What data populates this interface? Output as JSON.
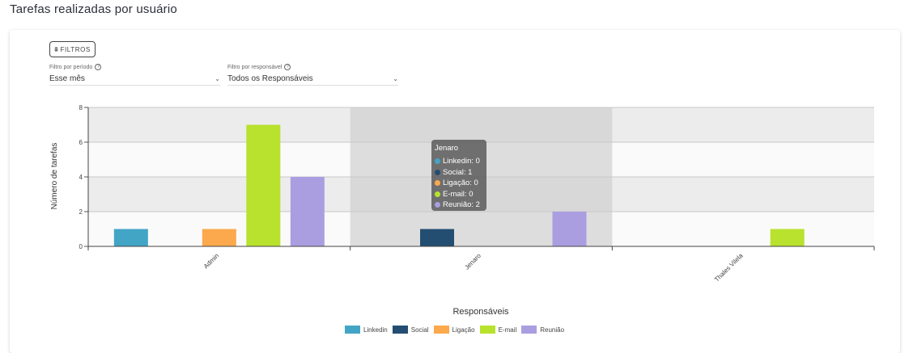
{
  "page": {
    "title": "Tarefas realizadas por usuário"
  },
  "filters": {
    "button_label": "FILTROS",
    "period": {
      "label": "Filtro por período",
      "value": "Esse mês"
    },
    "owner": {
      "label": "Filtro por responsável",
      "value": "Todos os Responsáveis"
    }
  },
  "colors": {
    "Linkedin": "#42a5c6",
    "Social": "#234e72",
    "Ligação": "#fba94c",
    "E-mail": "#b8e22e",
    "Reunião": "#ab9ee0",
    "highlight": "#d0d0d0"
  },
  "chart_data": {
    "type": "bar",
    "categories": [
      "Admin",
      "Jenaro",
      "Thales Vilela"
    ],
    "series": [
      {
        "name": "Linkedin",
        "values": [
          1,
          0,
          0
        ]
      },
      {
        "name": "Social",
        "values": [
          0,
          1,
          0
        ]
      },
      {
        "name": "Ligação",
        "values": [
          1,
          0,
          0
        ]
      },
      {
        "name": "E-mail",
        "values": [
          7,
          0,
          1
        ]
      },
      {
        "name": "Reunião",
        "values": [
          4,
          2,
          0
        ]
      }
    ],
    "xlabel": "Responsáveis",
    "ylabel": "Número de tarefas",
    "ylim": [
      0,
      8
    ],
    "yticks": [
      "0",
      "2",
      "4",
      "6",
      "8"
    ],
    "grid": true,
    "legend_position": "bottom-center",
    "highlighted_category": "Jenaro"
  },
  "tooltip": {
    "title": "Jenaro",
    "rows": [
      "Linkedin: 0",
      "Social: 1",
      "Ligação: 0",
      "E-mail: 0",
      "Reunião: 2"
    ]
  }
}
